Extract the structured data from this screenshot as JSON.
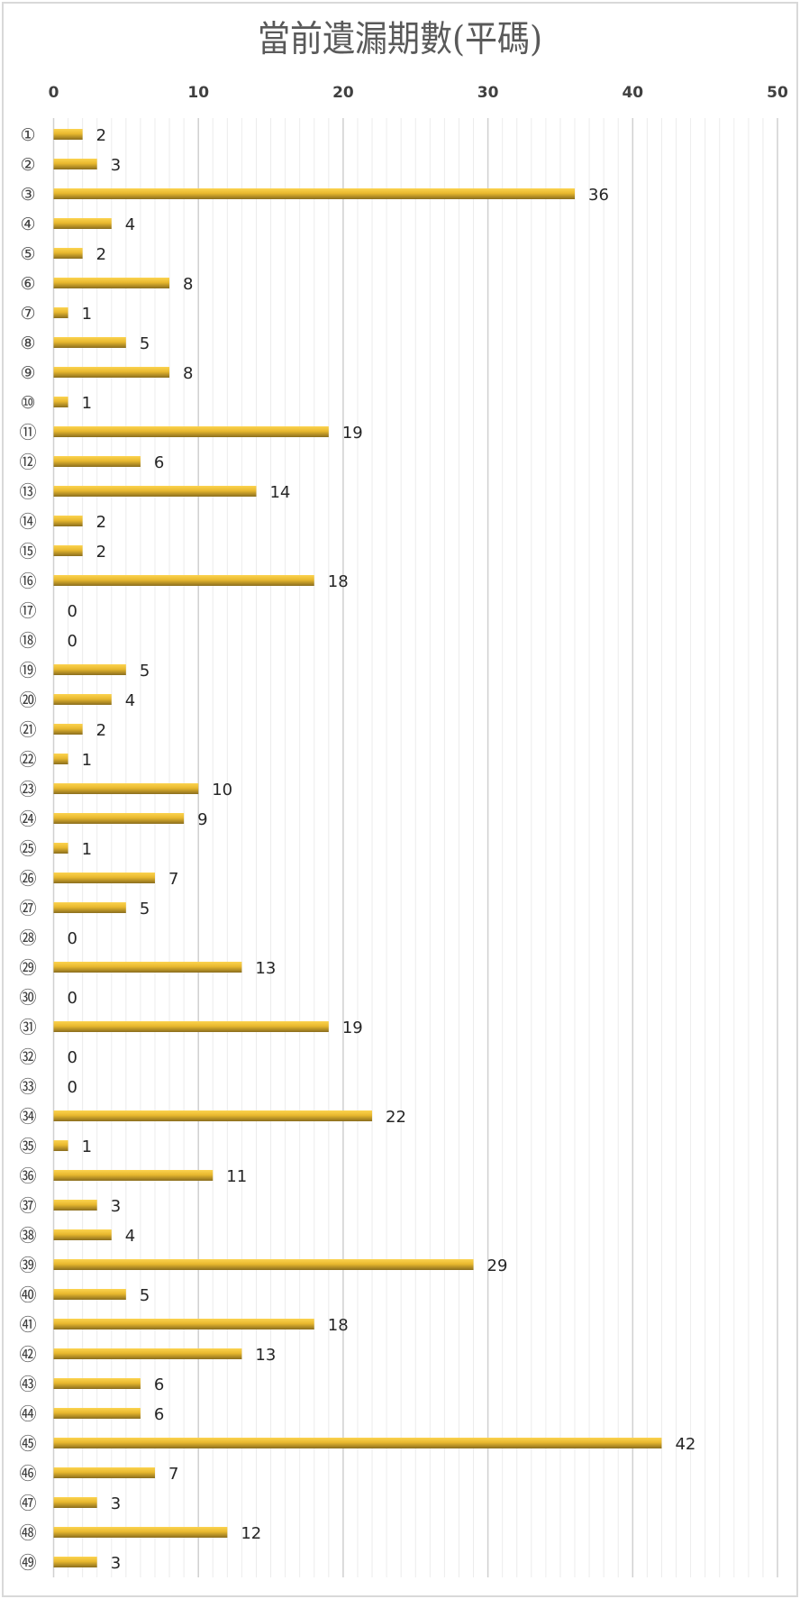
{
  "chart_data": {
    "type": "bar",
    "orientation": "horizontal",
    "title": "當前遺漏期數(平碼)",
    "xlim": [
      0,
      50
    ],
    "x_ticks": [
      "0",
      "10",
      "20",
      "30",
      "40",
      "50"
    ],
    "x_axis_position": "top",
    "grid": true,
    "data_labels": true,
    "bar_color": "#f2c233",
    "categories": [
      "①",
      "②",
      "③",
      "④",
      "⑤",
      "⑥",
      "⑦",
      "⑧",
      "⑨",
      "⑩",
      "⑪",
      "⑫",
      "⑬",
      "⑭",
      "⑮",
      "⑯",
      "⑰",
      "⑱",
      "⑲",
      "⑳",
      "㉑",
      "㉒",
      "㉓",
      "㉔",
      "㉕",
      "㉖",
      "㉗",
      "㉘",
      "㉙",
      "㉚",
      "㉛",
      "㉜",
      "㉝",
      "㉞",
      "㉟",
      "㊱",
      "㊲",
      "㊳",
      "㊴",
      "㊵",
      "㊶",
      "㊷",
      "㊸",
      "㊹",
      "㊺",
      "㊻",
      "㊼",
      "㊽",
      "㊾"
    ],
    "values": [
      2,
      3,
      36,
      4,
      2,
      8,
      1,
      5,
      8,
      1,
      19,
      6,
      14,
      2,
      2,
      18,
      0,
      0,
      5,
      4,
      2,
      1,
      10,
      9,
      1,
      7,
      5,
      0,
      13,
      0,
      19,
      0,
      0,
      22,
      1,
      11,
      3,
      4,
      29,
      5,
      18,
      13,
      6,
      6,
      42,
      7,
      3,
      12,
      3
    ]
  }
}
